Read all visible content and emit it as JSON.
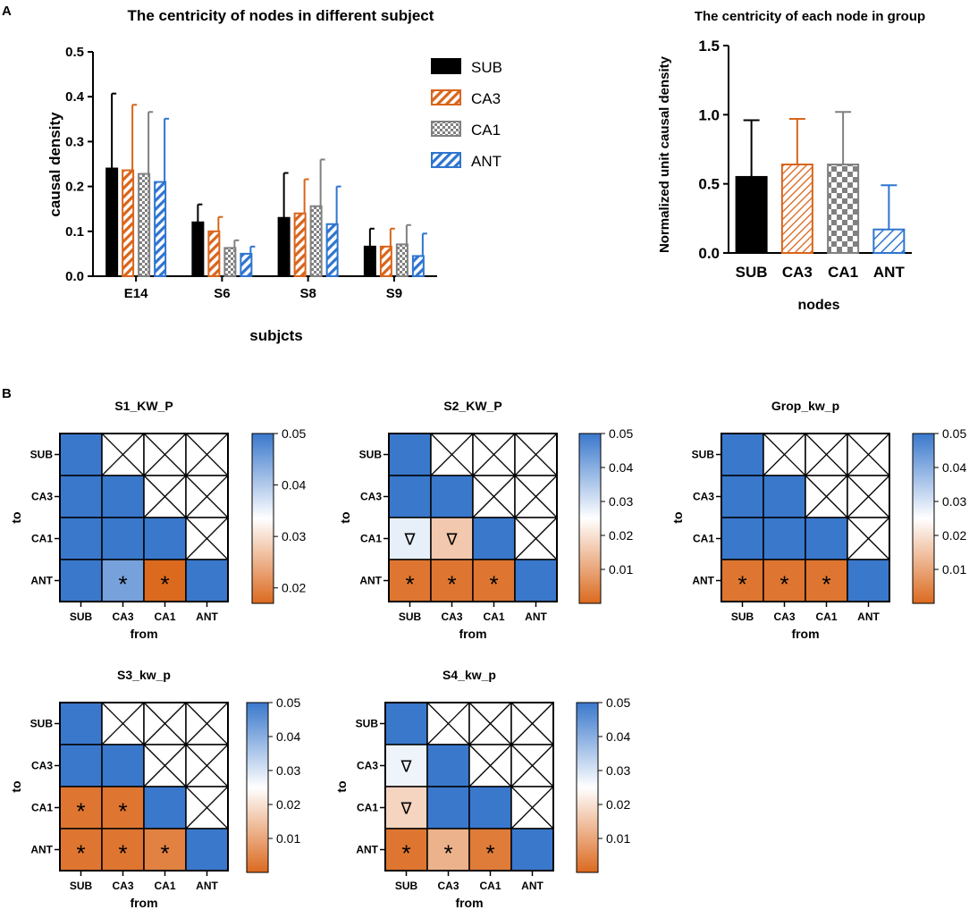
{
  "panel_labels": {
    "a": "A",
    "b": "B"
  },
  "colors": {
    "sub": "#000000",
    "ca3": "#d9651b",
    "ca1": "#808080",
    "ant": "#2f75cf",
    "cmap_high": "#3a78cc",
    "cmap_mid": "#ffffff",
    "cmap_low": "#db6a1f"
  },
  "chart_data": [
    {
      "type": "bar",
      "title": "The centricity of nodes in different subject",
      "xlabel": "subjcts",
      "ylabel": "causal density",
      "ylim": [
        0,
        0.5
      ],
      "yticks": [
        "0.0",
        "0.1",
        "0.2",
        "0.3",
        "0.4",
        "0.5"
      ],
      "categories": [
        "E14",
        "S6",
        "S8",
        "S9"
      ],
      "legend": [
        "SUB",
        "CA3",
        "CA1",
        "ANT"
      ],
      "series": [
        {
          "name": "SUB",
          "values": [
            0.24,
            0.12,
            0.13,
            0.066
          ],
          "errors": [
            0.167,
            0.04,
            0.1,
            0.04
          ]
        },
        {
          "name": "CA3",
          "values": [
            0.236,
            0.1,
            0.14,
            0.066
          ],
          "errors": [
            0.146,
            0.032,
            0.076,
            0.04
          ]
        },
        {
          "name": "CA1",
          "values": [
            0.228,
            0.063,
            0.156,
            0.071
          ],
          "errors": [
            0.138,
            0.017,
            0.104,
            0.043
          ]
        },
        {
          "name": "ANT",
          "values": [
            0.21,
            0.05,
            0.116,
            0.045
          ],
          "errors": [
            0.141,
            0.016,
            0.084,
            0.05
          ]
        }
      ]
    },
    {
      "type": "bar",
      "title": "The centricity of each node in group",
      "xlabel": "nodes",
      "ylabel": "Normalized unit causal density",
      "ylim": [
        0,
        1.5
      ],
      "yticks": [
        "0.0",
        "0.5",
        "1.0",
        "1.5"
      ],
      "categories": [
        "SUB",
        "CA3",
        "CA1",
        "ANT"
      ],
      "values": [
        0.55,
        0.64,
        0.64,
        0.17
      ],
      "errors": [
        0.41,
        0.33,
        0.38,
        0.32
      ]
    },
    {
      "type": "heatmap",
      "title": "S1_KW_P",
      "xlabel": "from",
      "ylabel": "to",
      "x_labels": [
        "SUB",
        "CA3",
        "CA1",
        "ANT"
      ],
      "y_labels": [
        "SUB",
        "CA3",
        "CA1",
        "ANT"
      ],
      "color_range": [
        0.017,
        0.05
      ],
      "colorbar_ticks": [
        "0.05",
        "0.04",
        "0.03",
        "0.02"
      ],
      "colorbar_tick_values": [
        0.05,
        0.04,
        0.03,
        0.02
      ],
      "cells": [
        [
          "B",
          "X",
          "X",
          "X"
        ],
        [
          "B",
          "B",
          "X",
          "X"
        ],
        [
          "B",
          "B",
          "B",
          "X"
        ],
        [
          "B",
          0.045,
          0.017,
          "B"
        ]
      ],
      "marks": [
        [
          "",
          "",
          "",
          ""
        ],
        [
          "",
          "",
          "",
          ""
        ],
        [
          "",
          "",
          "",
          ""
        ],
        [
          "",
          "*",
          "*",
          ""
        ]
      ]
    },
    {
      "type": "heatmap",
      "title": "S2_KW_P",
      "xlabel": "from",
      "ylabel": "to",
      "x_labels": [
        "SUB",
        "CA3",
        "CA1",
        "ANT"
      ],
      "y_labels": [
        "SUB",
        "CA3",
        "CA1",
        "ANT"
      ],
      "color_range": [
        0,
        0.05
      ],
      "colorbar_ticks": [
        "0.05",
        "0.04",
        "0.03",
        "0.02",
        "0.01"
      ],
      "colorbar_tick_values": [
        0.05,
        0.04,
        0.03,
        0.02,
        0.01
      ],
      "cells": [
        [
          "B",
          "X",
          "X",
          "X"
        ],
        [
          "B",
          "B",
          "X",
          "X"
        ],
        [
          0.028,
          0.016,
          "B",
          "X"
        ],
        [
          0.002,
          0.002,
          0.002,
          "B"
        ]
      ],
      "marks": [
        [
          "",
          "",
          "",
          ""
        ],
        [
          "",
          "",
          "",
          ""
        ],
        [
          "∇",
          "∇",
          "",
          ""
        ],
        [
          "*",
          "*",
          "*",
          ""
        ]
      ]
    },
    {
      "type": "heatmap",
      "title": "Grop_kw_p",
      "xlabel": "from",
      "ylabel": "to",
      "x_labels": [
        "SUB",
        "CA3",
        "CA1",
        "ANT"
      ],
      "y_labels": [
        "SUB",
        "CA3",
        "CA1",
        "ANT"
      ],
      "color_range": [
        0,
        0.05
      ],
      "colorbar_ticks": [
        "0.05",
        "0.04",
        "0.03",
        "0.02",
        "0.01"
      ],
      "colorbar_tick_values": [
        0.05,
        0.04,
        0.03,
        0.02,
        0.01
      ],
      "cells": [
        [
          "B",
          "X",
          "X",
          "X"
        ],
        [
          "B",
          "B",
          "X",
          "X"
        ],
        [
          "B",
          "B",
          "B",
          "X"
        ],
        [
          0.002,
          0.002,
          0.002,
          "B"
        ]
      ],
      "marks": [
        [
          "",
          "",
          "",
          ""
        ],
        [
          "",
          "",
          "",
          ""
        ],
        [
          "",
          "",
          "",
          ""
        ],
        [
          "*",
          "*",
          "*",
          ""
        ]
      ]
    },
    {
      "type": "heatmap",
      "title": "S3_kw_p",
      "xlabel": "from",
      "ylabel": "to",
      "x_labels": [
        "SUB",
        "CA3",
        "CA1",
        "ANT"
      ],
      "y_labels": [
        "SUB",
        "CA3",
        "CA1",
        "ANT"
      ],
      "color_range": [
        0,
        0.05
      ],
      "colorbar_ticks": [
        "0.05",
        "0.04",
        "0.03",
        "0.02",
        "0.01"
      ],
      "colorbar_tick_values": [
        0.05,
        0.04,
        0.03,
        0.02,
        0.01
      ],
      "cells": [
        [
          "B",
          "X",
          "X",
          "X"
        ],
        [
          "B",
          "B",
          "X",
          "X"
        ],
        [
          0.002,
          0.002,
          "B",
          "X"
        ],
        [
          0.002,
          0.002,
          0.004,
          "B"
        ]
      ],
      "marks": [
        [
          "",
          "",
          "",
          ""
        ],
        [
          "",
          "",
          "",
          ""
        ],
        [
          "*",
          "*",
          "",
          ""
        ],
        [
          "*",
          "*",
          "*",
          ""
        ]
      ]
    },
    {
      "type": "heatmap",
      "title": "S4_kw_p",
      "xlabel": "from",
      "ylabel": "to",
      "x_labels": [
        "SUB",
        "CA3",
        "CA1",
        "ANT"
      ],
      "y_labels": [
        "SUB",
        "CA3",
        "CA1",
        "ANT"
      ],
      "color_range": [
        0,
        0.05
      ],
      "colorbar_ticks": [
        "0.05",
        "0.04",
        "0.03",
        "0.02",
        "0.01"
      ],
      "colorbar_tick_values": [
        0.05,
        0.04,
        0.03,
        0.02,
        0.01
      ],
      "cells": [
        [
          "B",
          "X",
          "X",
          "X"
        ],
        [
          0.027,
          "B",
          "X",
          "X"
        ],
        [
          0.018,
          "B",
          "B",
          "X"
        ],
        [
          0.002,
          0.012,
          0.003,
          "B"
        ]
      ],
      "marks": [
        [
          "",
          "",
          "",
          ""
        ],
        [
          "∇",
          "",
          "",
          ""
        ],
        [
          "∇",
          "",
          "",
          ""
        ],
        [
          "*",
          "*",
          "*",
          ""
        ]
      ]
    }
  ]
}
